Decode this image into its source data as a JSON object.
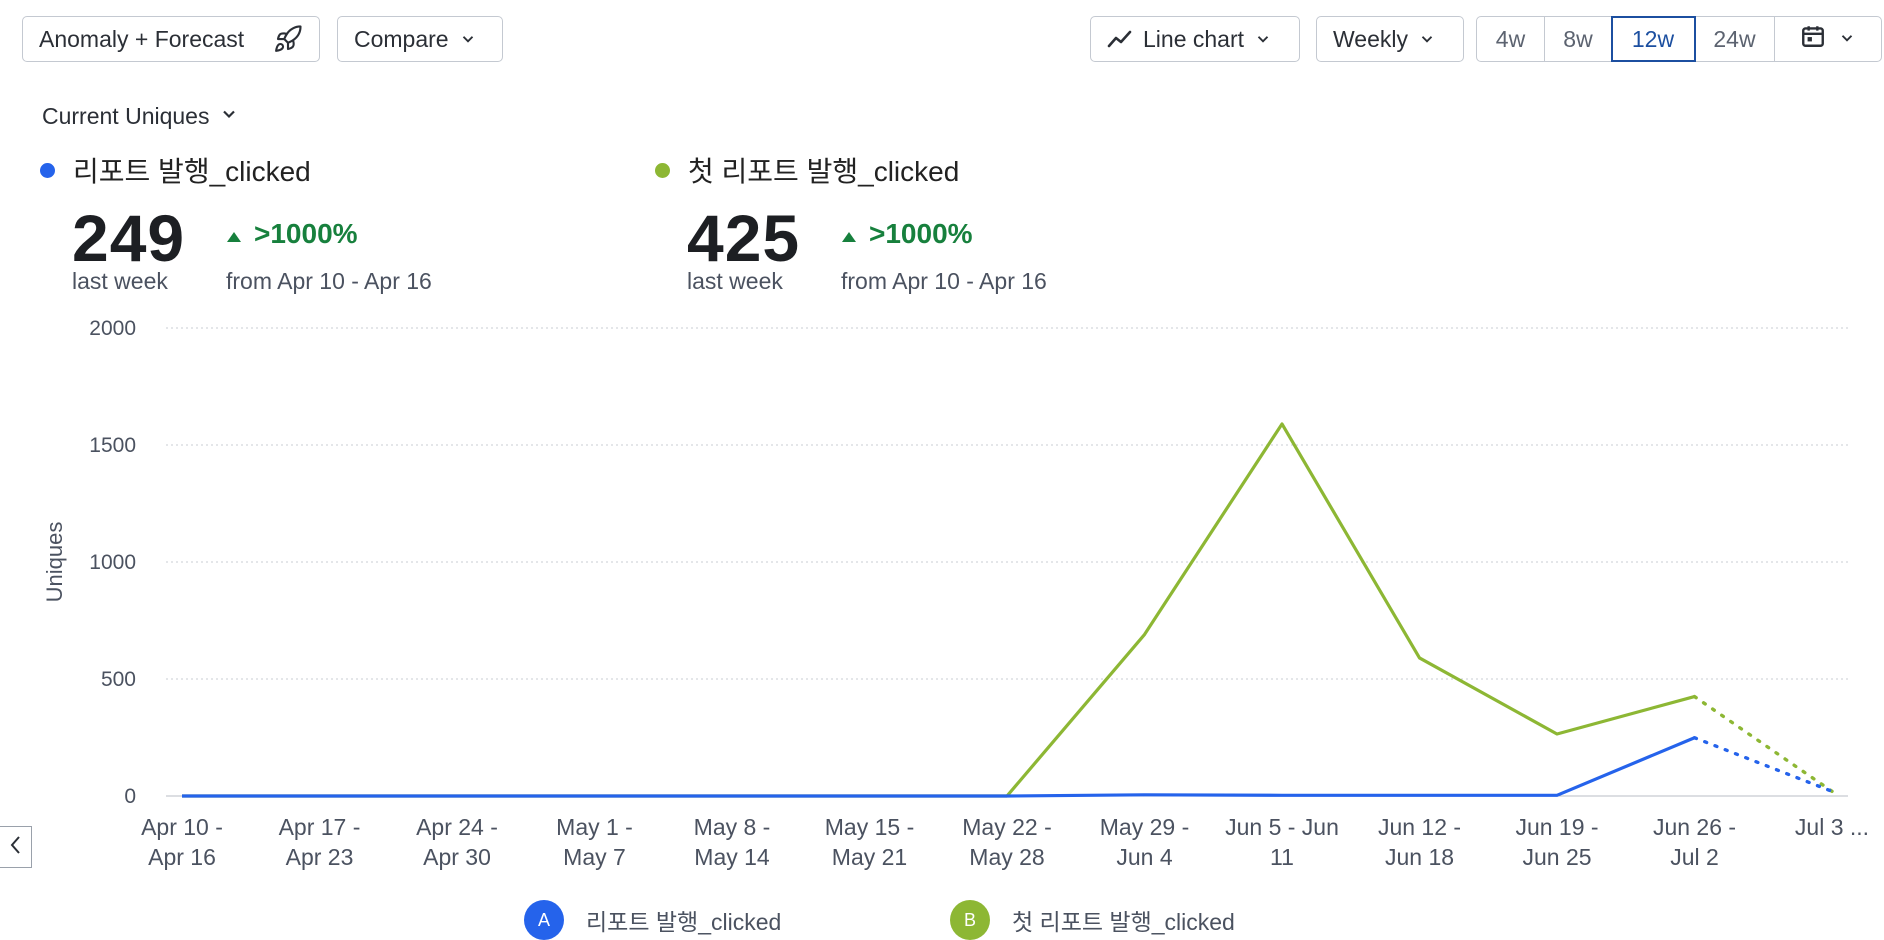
{
  "toolbar": {
    "anomaly_label": "Anomaly + Forecast",
    "compare_label": "Compare",
    "chart_type_label": "Line chart",
    "interval_label": "Weekly",
    "ranges": [
      "4w",
      "8w",
      "12w",
      "24w"
    ],
    "active_range": "12w"
  },
  "metric_selector": {
    "label": "Current Uniques"
  },
  "summaries": [
    {
      "name": "리포트 발행_clicked",
      "color": "#2563eb",
      "value": "249",
      "period": "last week",
      "delta": ">1000%",
      "compare": "from Apr 10 - Apr 16"
    },
    {
      "name": "첫 리포트 발행_clicked",
      "color": "#8db734",
      "value": "425",
      "period": "last week",
      "delta": ">1000%",
      "compare": "from Apr 10 - Apr 16"
    }
  ],
  "legend": [
    {
      "badge": "A",
      "name": "리포트 발행_clicked",
      "color": "#2563eb"
    },
    {
      "badge": "B",
      "name": "첫 리포트 발행_clicked",
      "color": "#8db734"
    }
  ],
  "chart_data": {
    "type": "line",
    "ylabel": "Uniques",
    "ylim": [
      0,
      2000
    ],
    "yticks": [
      0,
      500,
      1000,
      1500,
      2000
    ],
    "grid": true,
    "categories": [
      [
        "Apr 10 -",
        "Apr 16"
      ],
      [
        "Apr 17 -",
        "Apr 23"
      ],
      [
        "Apr 24 -",
        "Apr 30"
      ],
      [
        "May 1 -",
        "May 7"
      ],
      [
        "May 8 -",
        "May 14"
      ],
      [
        "May 15 -",
        "May 21"
      ],
      [
        "May 22 -",
        "May 28"
      ],
      [
        "May 29 -",
        "Jun 4"
      ],
      [
        "Jun 5 - Jun",
        "11"
      ],
      [
        "Jun 12 -",
        "Jun 18"
      ],
      [
        "Jun 19 -",
        "Jun 25"
      ],
      [
        "Jun 26 -",
        "Jul 2"
      ],
      [
        "Jul 3 ..."
      ]
    ],
    "series": [
      {
        "name": "리포트 발행_clicked",
        "color": "#2563eb",
        "values": [
          0,
          0,
          0,
          0,
          0,
          0,
          0,
          5,
          3,
          3,
          3,
          249,
          null
        ],
        "forecast": [
          null,
          null,
          null,
          null,
          null,
          null,
          null,
          null,
          null,
          null,
          null,
          249,
          20
        ]
      },
      {
        "name": "첫 리포트 발행_clicked",
        "color": "#8db734",
        "values": [
          0,
          0,
          0,
          0,
          0,
          0,
          0,
          690,
          1590,
          590,
          265,
          425,
          null
        ],
        "forecast": [
          null,
          null,
          null,
          null,
          null,
          null,
          null,
          null,
          null,
          null,
          null,
          425,
          20
        ]
      }
    ]
  }
}
